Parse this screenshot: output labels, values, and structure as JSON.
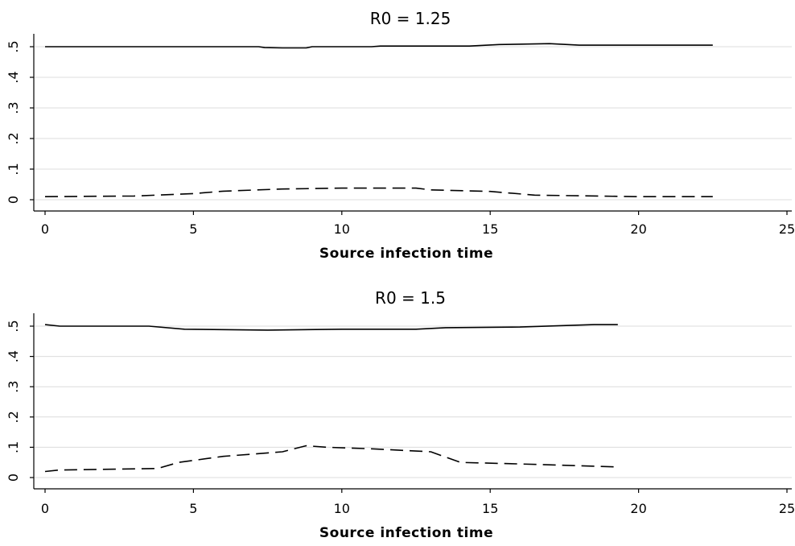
{
  "chart_data": [
    {
      "type": "line",
      "title": "R0 = 1.25",
      "xlabel": "Source infection time",
      "ylabel": "",
      "xlim": [
        0,
        25
      ],
      "ylim": [
        0,
        0.5
      ],
      "xticks": [
        0,
        5,
        10,
        15,
        20,
        25
      ],
      "yticks": [
        0,
        0.1,
        0.2,
        0.3,
        0.4,
        0.5
      ],
      "xtick_labels": [
        "0",
        "5",
        "10",
        "15",
        "20",
        "25"
      ],
      "ytick_labels": [
        "0",
        ".1",
        ".2",
        ".3",
        ".4",
        ".5"
      ],
      "grid": true,
      "series": [
        {
          "style": "solid",
          "x": [
            0,
            7.2,
            7.4,
            8.0,
            8.8,
            9.0,
            11.0,
            11.3,
            14.3,
            15.3,
            17.0,
            18.0,
            22.5
          ],
          "y": [
            0.5,
            0.5,
            0.497,
            0.496,
            0.496,
            0.5,
            0.5,
            0.502,
            0.502,
            0.507,
            0.51,
            0.505,
            0.505
          ]
        },
        {
          "style": "dashed",
          "x": [
            0,
            3.0,
            5.0,
            6.0,
            8.0,
            10.0,
            12.5,
            13.0,
            15.0,
            16.5,
            18.0,
            20.0,
            22.5
          ],
          "y": [
            0.01,
            0.012,
            0.02,
            0.028,
            0.035,
            0.038,
            0.038,
            0.032,
            0.027,
            0.015,
            0.013,
            0.01,
            0.01
          ]
        }
      ]
    },
    {
      "type": "line",
      "title": "R0 = 1.5",
      "xlabel": "Source infection time",
      "ylabel": "",
      "xlim": [
        0,
        25
      ],
      "ylim": [
        0,
        0.5
      ],
      "xticks": [
        0,
        5,
        10,
        15,
        20,
        25
      ],
      "yticks": [
        0,
        0.1,
        0.2,
        0.3,
        0.4,
        0.5
      ],
      "xtick_labels": [
        "0",
        "5",
        "10",
        "15",
        "20",
        "25"
      ],
      "ytick_labels": [
        "0",
        ".1",
        ".2",
        ".3",
        ".4",
        ".5"
      ],
      "grid": true,
      "series": [
        {
          "style": "solid",
          "x": [
            0,
            0.5,
            3.5,
            4.7,
            7.5,
            10.0,
            12.5,
            13.5,
            16.0,
            18.5,
            19.3
          ],
          "y": [
            0.505,
            0.5,
            0.5,
            0.49,
            0.487,
            0.49,
            0.49,
            0.495,
            0.497,
            0.505,
            0.505
          ]
        },
        {
          "style": "dashed",
          "x": [
            0,
            0.5,
            3.8,
            4.5,
            6.0,
            8.0,
            8.8,
            9.5,
            11.0,
            13.0,
            14.0,
            16.0,
            19.3
          ],
          "y": [
            0.02,
            0.025,
            0.03,
            0.05,
            0.07,
            0.085,
            0.105,
            0.1,
            0.095,
            0.085,
            0.05,
            0.045,
            0.035
          ]
        }
      ]
    }
  ]
}
